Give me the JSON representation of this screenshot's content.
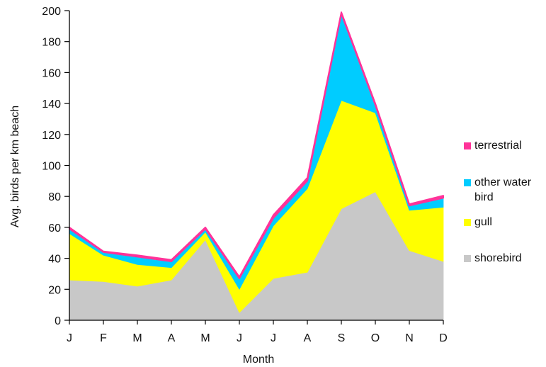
{
  "chart_data": {
    "type": "area",
    "stacked": true,
    "title": "",
    "xlabel": "Month",
    "ylabel": "Avg. birds per km beach",
    "categories": [
      "J",
      "F",
      "M",
      "A",
      "M",
      "J",
      "J",
      "A",
      "S",
      "O",
      "N",
      "D"
    ],
    "ylim": [
      0,
      200
    ],
    "yticks": [
      0,
      20,
      40,
      60,
      80,
      100,
      120,
      140,
      160,
      180,
      200
    ],
    "grid": false,
    "legend_position": "right",
    "series": [
      {
        "name": "shorebird",
        "color": "#c8c8c8",
        "values": [
          26,
          25,
          22,
          26,
          52,
          5,
          27,
          31,
          72,
          83,
          45,
          38
        ]
      },
      {
        "name": "gull",
        "color": "#ffff00",
        "values": [
          30,
          17,
          14,
          8,
          5,
          15,
          34,
          54,
          70,
          51,
          26,
          35
        ]
      },
      {
        "name": "other water bird",
        "color": "#00ccff",
        "values": [
          3,
          2,
          5,
          4,
          2,
          7,
          5,
          5,
          56,
          5,
          3,
          6
        ]
      },
      {
        "name": "terrestrial",
        "color": "#ff3399",
        "values": [
          1,
          0.5,
          1,
          1,
          1,
          1,
          2,
          2,
          1,
          1,
          1,
          1.5
        ]
      }
    ],
    "legend_order": [
      "terrestrial",
      "other water bird",
      "gull",
      "shorebird"
    ]
  }
}
